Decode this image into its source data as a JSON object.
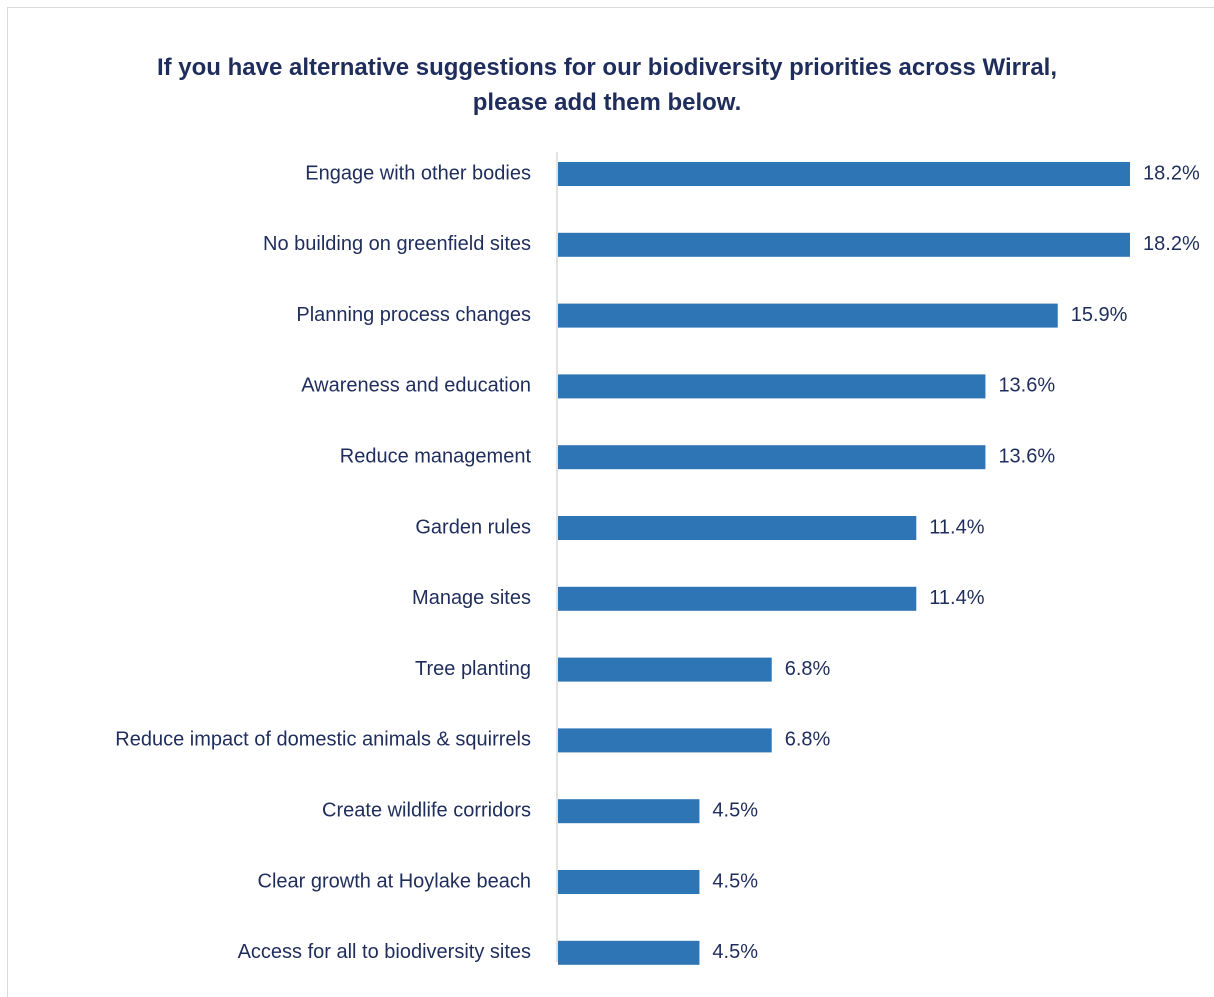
{
  "chart_data": {
    "type": "bar",
    "orientation": "horizontal",
    "title": "If you have alternative suggestions for our biodiversity priorities across Wirral, please add them below.",
    "categories": [
      "Engage with other bodies",
      "No building on greenfield sites",
      "Planning process changes",
      "Awareness and education",
      "Reduce management",
      "Garden rules",
      "Manage sites",
      "Tree planting",
      "Reduce impact of domestic animals & squirrels",
      "Create wildlife corridors",
      "Clear growth at Hoylake beach",
      "Access for all to biodiversity sites"
    ],
    "values": [
      18.2,
      18.2,
      15.9,
      13.6,
      13.6,
      11.4,
      11.4,
      6.8,
      6.8,
      4.5,
      4.5,
      4.5
    ],
    "value_labels": [
      "18.2%",
      "18.2%",
      "15.9%",
      "13.6%",
      "13.6%",
      "11.4%",
      "11.4%",
      "6.8%",
      "6.8%",
      "4.5%",
      "4.5%",
      "4.5%"
    ],
    "color": "#2e75b6"
  }
}
